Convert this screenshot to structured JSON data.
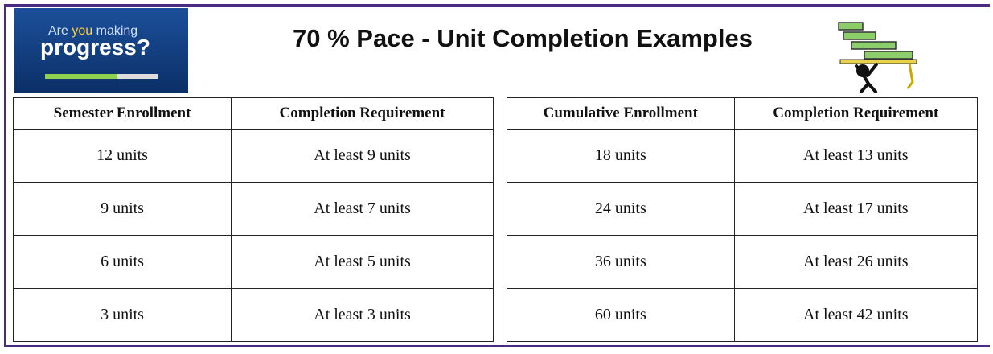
{
  "logo": {
    "words": [
      "Are",
      "you",
      "making"
    ],
    "main": "progress?"
  },
  "title": "70 % Pace - Unit Completion Examples",
  "tables": [
    {
      "header": [
        "Semester Enrollment",
        "Completion Requirement"
      ],
      "rows": [
        [
          "12 units",
          "At least 9 units"
        ],
        [
          "9 units",
          "At least 7 units"
        ],
        [
          "6 units",
          "At least 5 units"
        ],
        [
          "3 units",
          "At least 3 units"
        ]
      ]
    },
    {
      "header": [
        "Cumulative Enrollment",
        "Completion Requirement"
      ],
      "rows": [
        [
          "18 units",
          "At least 13 units"
        ],
        [
          "24 units",
          "At least 17 units"
        ],
        [
          "36 units",
          "At least 26 units"
        ],
        [
          "60 units",
          "At least 42 units"
        ]
      ]
    }
  ]
}
